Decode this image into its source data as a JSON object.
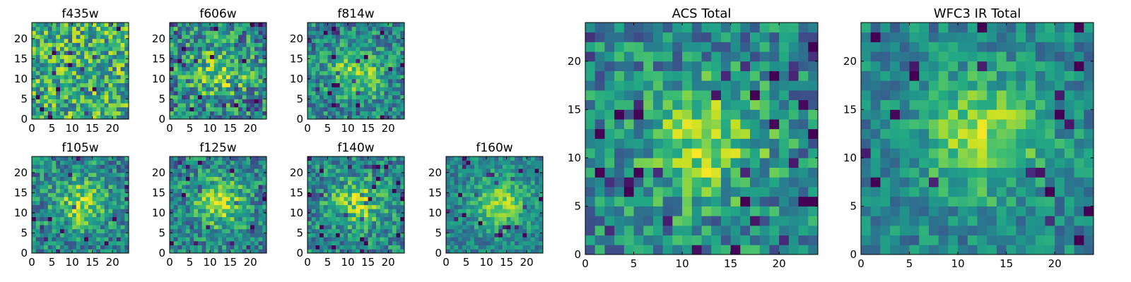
{
  "figure": {
    "title": ""
  },
  "chart_data": [
    {
      "type": "heatmap",
      "title": "f435w",
      "grid_size": 24,
      "xlim": [
        0,
        24
      ],
      "ylim": [
        0,
        24
      ],
      "xticks": [
        0,
        5,
        10,
        15,
        20
      ],
      "yticks": [
        0,
        5,
        10,
        15,
        20
      ],
      "xtick_labels": [
        "0",
        "5",
        "10",
        "15",
        "20"
      ],
      "ytick_labels": [
        "0",
        "5",
        "10",
        "15",
        "20"
      ],
      "colormap": "viridis",
      "noise": "high",
      "peak": null
    },
    {
      "type": "heatmap",
      "title": "f606w",
      "grid_size": 24,
      "xlim": [
        0,
        24
      ],
      "ylim": [
        0,
        24
      ],
      "xticks": [
        0,
        5,
        10,
        15,
        20
      ],
      "yticks": [
        0,
        5,
        10,
        15,
        20
      ],
      "xtick_labels": [
        "0",
        "5",
        "10",
        "15",
        "20"
      ],
      "ytick_labels": [
        "0",
        "5",
        "10",
        "15",
        "20"
      ],
      "colormap": "viridis",
      "noise": "high",
      "peak": [
        12,
        11
      ]
    },
    {
      "type": "heatmap",
      "title": "f814w",
      "grid_size": 24,
      "xlim": [
        0,
        24
      ],
      "ylim": [
        0,
        24
      ],
      "xticks": [
        0,
        5,
        10,
        15,
        20
      ],
      "yticks": [
        0,
        5,
        10,
        15,
        20
      ],
      "xtick_labels": [
        "0",
        "5",
        "10",
        "15",
        "20"
      ],
      "ytick_labels": [
        "0",
        "5",
        "10",
        "15",
        "20"
      ],
      "colormap": "viridis",
      "noise": "medium",
      "peak": [
        12,
        11
      ]
    },
    {
      "type": "heatmap",
      "title": "f105w",
      "grid_size": 24,
      "xlim": [
        0,
        24
      ],
      "ylim": [
        0,
        24
      ],
      "xticks": [
        0,
        5,
        10,
        15,
        20
      ],
      "yticks": [
        0,
        5,
        10,
        15,
        20
      ],
      "xtick_labels": [
        "0",
        "5",
        "10",
        "15",
        "20"
      ],
      "ytick_labels": [
        "0",
        "5",
        "10",
        "15",
        "20"
      ],
      "colormap": "viridis",
      "noise": "medium",
      "peak": [
        12,
        12
      ]
    },
    {
      "type": "heatmap",
      "title": "f125w",
      "grid_size": 24,
      "xlim": [
        0,
        24
      ],
      "ylim": [
        0,
        24
      ],
      "xticks": [
        0,
        5,
        10,
        15,
        20
      ],
      "yticks": [
        0,
        5,
        10,
        15,
        20
      ],
      "xtick_labels": [
        "0",
        "5",
        "10",
        "15",
        "20"
      ],
      "ytick_labels": [
        "0",
        "5",
        "10",
        "15",
        "20"
      ],
      "colormap": "viridis",
      "noise": "medium",
      "peak": [
        12,
        12
      ]
    },
    {
      "type": "heatmap",
      "title": "f140w",
      "grid_size": 24,
      "xlim": [
        0,
        24
      ],
      "ylim": [
        0,
        24
      ],
      "xticks": [
        0,
        5,
        10,
        15,
        20
      ],
      "yticks": [
        0,
        5,
        10,
        15,
        20
      ],
      "xtick_labels": [
        "0",
        "5",
        "10",
        "15",
        "20"
      ],
      "ytick_labels": [
        "0",
        "5",
        "10",
        "15",
        "20"
      ],
      "colormap": "viridis",
      "noise": "medium",
      "peak": [
        12,
        12
      ]
    },
    {
      "type": "heatmap",
      "title": "f160w",
      "grid_size": 24,
      "xlim": [
        0,
        24
      ],
      "ylim": [
        0,
        24
      ],
      "xticks": [
        0,
        5,
        10,
        15,
        20
      ],
      "yticks": [
        0,
        5,
        10,
        15,
        20
      ],
      "xtick_labels": [
        "0",
        "5",
        "10",
        "15",
        "20"
      ],
      "ytick_labels": [
        "0",
        "5",
        "10",
        "15",
        "20"
      ],
      "colormap": "viridis",
      "noise": "low",
      "peak": [
        13,
        12
      ]
    },
    {
      "type": "heatmap",
      "title": "ACS Total",
      "grid_size": 24,
      "xlim": [
        0,
        24
      ],
      "ylim": [
        0,
        24
      ],
      "xticks": [
        0,
        5,
        10,
        15,
        20
      ],
      "yticks": [
        0,
        5,
        10,
        15,
        20
      ],
      "xtick_labels": [
        "0",
        "5",
        "10",
        "15",
        "20"
      ],
      "ytick_labels": [
        "0",
        "5",
        "10",
        "15",
        "20"
      ],
      "colormap": "viridis",
      "noise": "medium",
      "peak": [
        12,
        11
      ]
    },
    {
      "type": "heatmap",
      "title": "WFC3 IR Total",
      "grid_size": 24,
      "xlim": [
        0,
        24
      ],
      "ylim": [
        0,
        24
      ],
      "xticks": [
        0,
        5,
        10,
        15,
        20
      ],
      "yticks": [
        0,
        5,
        10,
        15,
        20
      ],
      "xtick_labels": [
        "0",
        "5",
        "10",
        "15",
        "20"
      ],
      "ytick_labels": [
        "0",
        "5",
        "10",
        "15",
        "20"
      ],
      "colormap": "viridis",
      "noise": "low",
      "peak": [
        12,
        12
      ]
    }
  ]
}
